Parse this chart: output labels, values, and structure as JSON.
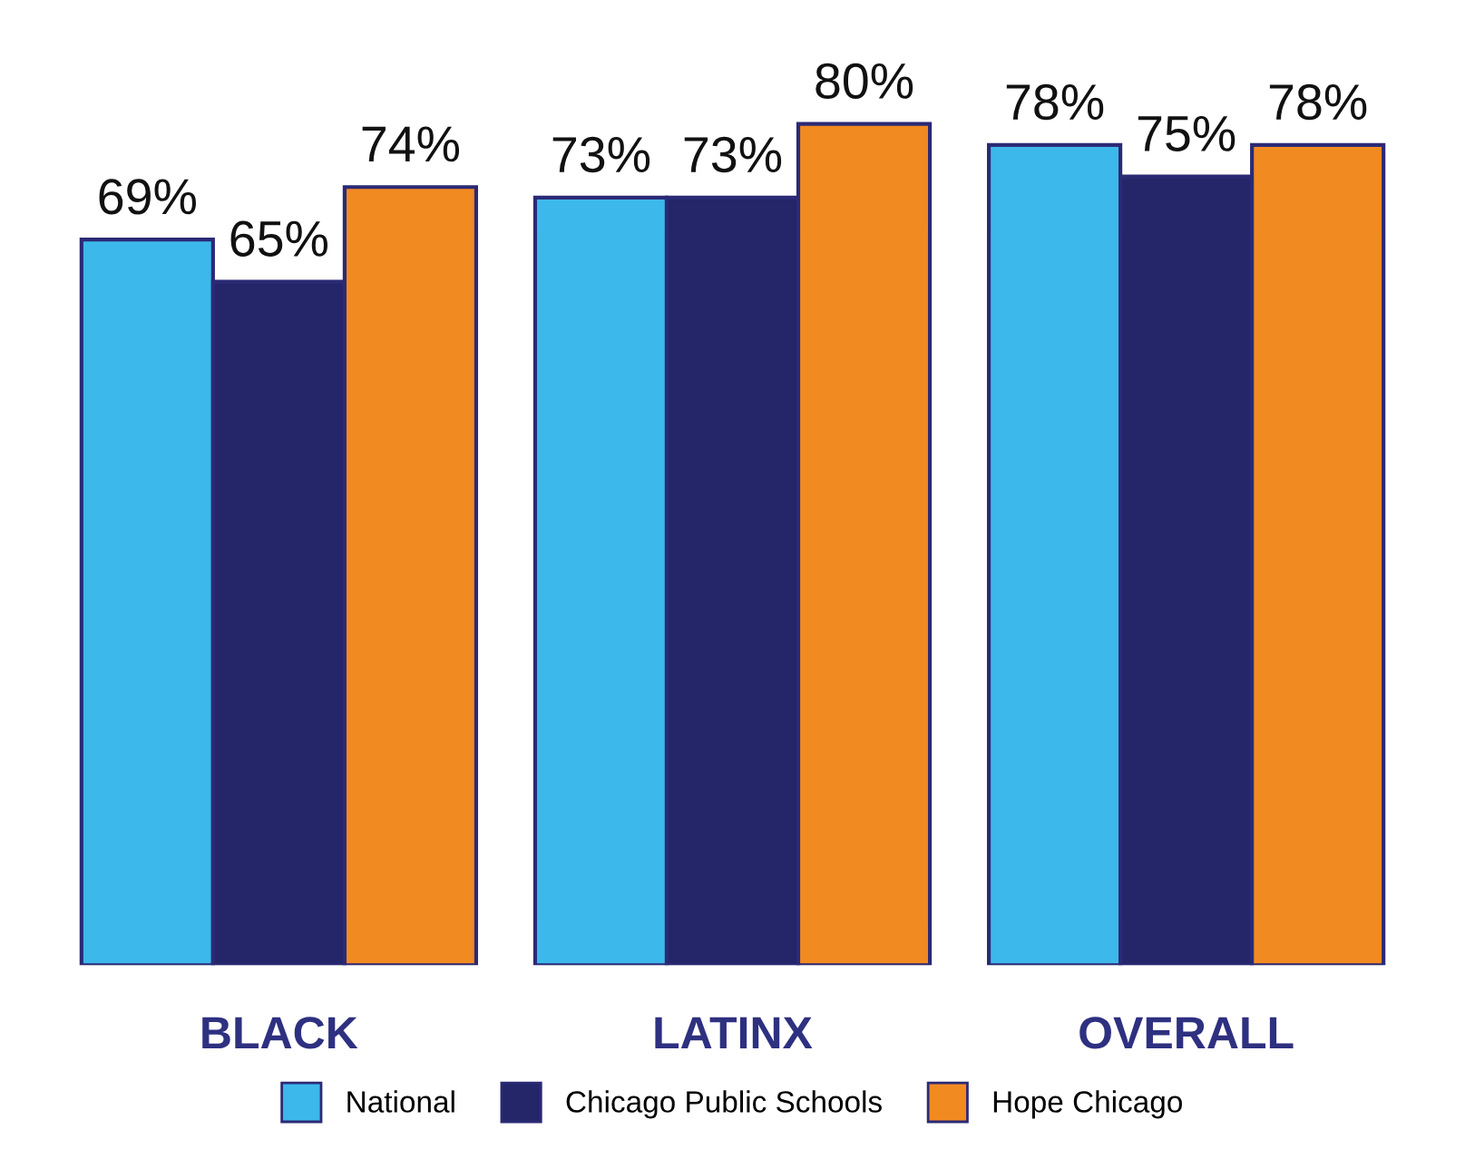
{
  "chart_data": {
    "type": "bar",
    "categories": [
      "BLACK",
      "LATINX",
      "OVERALL"
    ],
    "series": [
      {
        "name": "National",
        "color": "#3db8ea",
        "values": [
          69,
          73,
          78
        ],
        "value_labels": [
          "69%",
          "73%",
          "78%"
        ]
      },
      {
        "name": "Chicago Public Schools",
        "color": "#25256a",
        "values": [
          65,
          73,
          75
        ],
        "value_labels": [
          "65%",
          "73%",
          "75%"
        ]
      },
      {
        "name": "Hope Chicago",
        "color": "#f28a22",
        "values": [
          74,
          80,
          78
        ],
        "value_labels": [
          "74%",
          "80%",
          "78%"
        ]
      }
    ],
    "legend": "bottom",
    "grid": false
  }
}
